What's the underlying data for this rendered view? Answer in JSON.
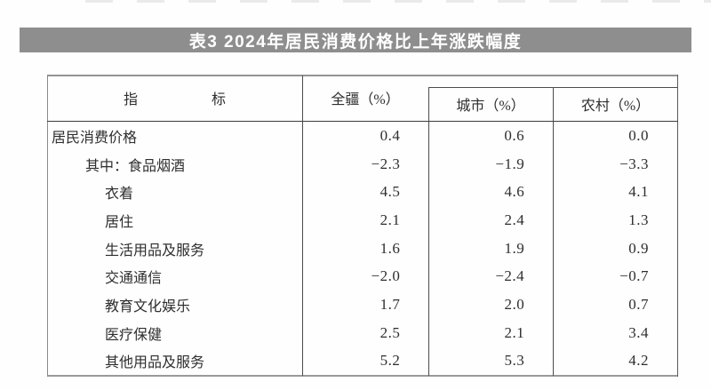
{
  "page": {
    "title": "表3 2024年居民消费价格比上年涨跌幅度"
  },
  "colors": {
    "title_bar_bg": "#8e8e8e",
    "title_text": "#ffffff",
    "table_border": "#4c4c4c"
  },
  "table": {
    "headers": {
      "indicator": "指标",
      "overall": "全疆（%）",
      "city": "城市（%）",
      "rural": "农村（%）"
    },
    "rows": [
      {
        "indicator": "居民消费价格",
        "indent": 0,
        "overall": "0.4",
        "city": "0.6",
        "rural": "0.0"
      },
      {
        "indicator": "其中：食品烟酒",
        "indent": 1,
        "overall": "−2.3",
        "city": "−1.9",
        "rural": "−3.3"
      },
      {
        "indicator": "衣着",
        "indent": 2,
        "overall": "4.5",
        "city": "4.6",
        "rural": "4.1"
      },
      {
        "indicator": "居住",
        "indent": 2,
        "overall": "2.1",
        "city": "2.4",
        "rural": "1.3"
      },
      {
        "indicator": "生活用品及服务",
        "indent": 2,
        "overall": "1.6",
        "city": "1.9",
        "rural": "0.9"
      },
      {
        "indicator": "交通通信",
        "indent": 2,
        "overall": "−2.0",
        "city": "−2.4",
        "rural": "−0.7"
      },
      {
        "indicator": "教育文化娱乐",
        "indent": 2,
        "overall": "1.7",
        "city": "2.0",
        "rural": "0.7"
      },
      {
        "indicator": "医疗保健",
        "indent": 2,
        "overall": "2.5",
        "city": "2.1",
        "rural": "3.4"
      },
      {
        "indicator": "其他用品及服务",
        "indent": 2,
        "overall": "5.2",
        "city": "5.3",
        "rural": "4.2"
      }
    ]
  }
}
